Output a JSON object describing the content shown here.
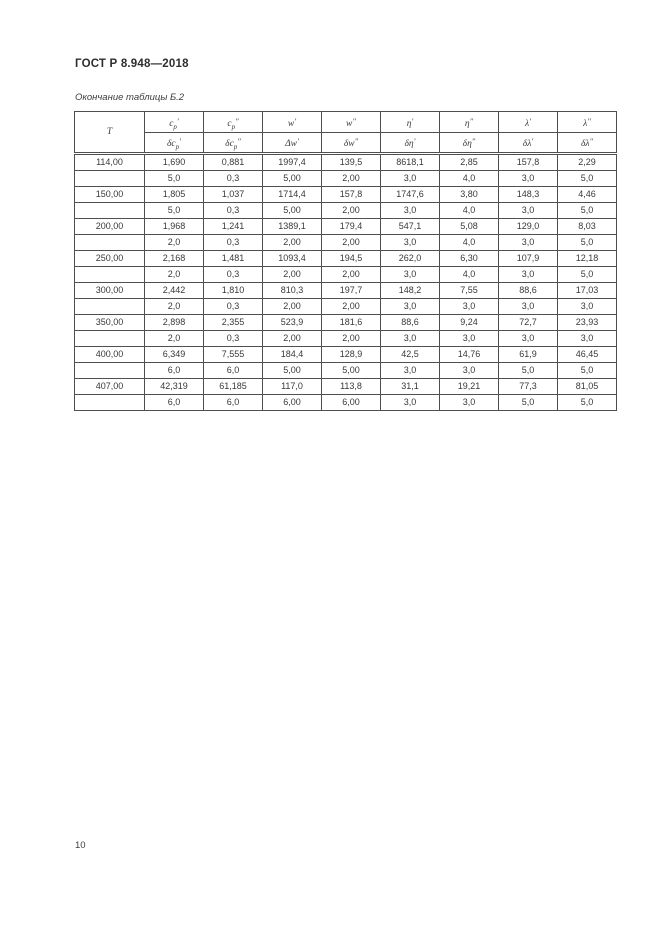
{
  "page": {
    "header_title": "ГОСТ Р 8.948—2018",
    "table_caption": "Окончание таблицы Б.2",
    "page_number": "10"
  },
  "table": {
    "col_t": {
      "base": "T"
    },
    "header_top": [
      {
        "base": "c",
        "sub": "p",
        "mark": "′"
      },
      {
        "base": "c",
        "sub": "p",
        "mark": "″"
      },
      {
        "base": "w",
        "sub": "",
        "mark": "′"
      },
      {
        "base": "w",
        "sub": "",
        "mark": "″"
      },
      {
        "base": "η",
        "sub": "",
        "mark": "′"
      },
      {
        "base": "η",
        "sub": "",
        "mark": "″"
      },
      {
        "base": "λ",
        "sub": "",
        "mark": "′"
      },
      {
        "base": "λ",
        "sub": "",
        "mark": "″"
      }
    ],
    "header_bottom": [
      {
        "base": "δc",
        "sub": "p",
        "mark": "′"
      },
      {
        "base": "δc",
        "sub": "p",
        "mark": "″"
      },
      {
        "base": "Δw",
        "sub": "",
        "mark": "′"
      },
      {
        "base": "δw",
        "sub": "",
        "mark": "″"
      },
      {
        "base": "δη",
        "sub": "",
        "mark": "′"
      },
      {
        "base": "δη",
        "sub": "",
        "mark": "″"
      },
      {
        "base": "δλ",
        "sub": "",
        "mark": "′"
      },
      {
        "base": "δλ",
        "sub": "",
        "mark": "″"
      }
    ],
    "rows": [
      {
        "t": "114,00",
        "values": [
          "1,690",
          "0,881",
          "1997,4",
          "139,5",
          "8618,1",
          "2,85",
          "157,8",
          "2,29"
        ],
        "deltas": [
          "5,0",
          "0,3",
          "5,00",
          "2,00",
          "3,0",
          "4,0",
          "3,0",
          "5,0"
        ]
      },
      {
        "t": "150,00",
        "values": [
          "1,805",
          "1,037",
          "1714,4",
          "157,8",
          "1747,6",
          "3,80",
          "148,3",
          "4,46"
        ],
        "deltas": [
          "5,0",
          "0,3",
          "5,00",
          "2,00",
          "3,0",
          "4,0",
          "3,0",
          "5,0"
        ]
      },
      {
        "t": "200,00",
        "values": [
          "1,968",
          "1,241",
          "1389,1",
          "179,4",
          "547,1",
          "5,08",
          "129,0",
          "8,03"
        ],
        "deltas": [
          "2,0",
          "0,3",
          "2,00",
          "2,00",
          "3,0",
          "4,0",
          "3,0",
          "5,0"
        ]
      },
      {
        "t": "250,00",
        "values": [
          "2,168",
          "1,481",
          "1093,4",
          "194,5",
          "262,0",
          "6,30",
          "107,9",
          "12,18"
        ],
        "deltas": [
          "2,0",
          "0,3",
          "2,00",
          "2,00",
          "3,0",
          "4,0",
          "3,0",
          "5,0"
        ]
      },
      {
        "t": "300,00",
        "values": [
          "2,442",
          "1,810",
          "810,3",
          "197,7",
          "148,2",
          "7,55",
          "88,6",
          "17,03"
        ],
        "deltas": [
          "2,0",
          "0,3",
          "2,00",
          "2,00",
          "3,0",
          "3,0",
          "3,0",
          "3,0"
        ]
      },
      {
        "t": "350,00",
        "values": [
          "2,898",
          "2,355",
          "523,9",
          "181,6",
          "88,6",
          "9,24",
          "72,7",
          "23,93"
        ],
        "deltas": [
          "2,0",
          "0,3",
          "2,00",
          "2,00",
          "3,0",
          "3,0",
          "3,0",
          "3,0"
        ]
      },
      {
        "t": "400,00",
        "values": [
          "6,349",
          "7,555",
          "184,4",
          "128,9",
          "42,5",
          "14,76",
          "61,9",
          "46,45"
        ],
        "deltas": [
          "6,0",
          "6,0",
          "5,00",
          "5,00",
          "3,0",
          "3,0",
          "5,0",
          "5,0"
        ]
      },
      {
        "t": "407,00",
        "values": [
          "42,319",
          "61,185",
          "117,0",
          "113,8",
          "31,1",
          "19,21",
          "77,3",
          "81,05"
        ],
        "deltas": [
          "6,0",
          "6,0",
          "6,00",
          "6,00",
          "3,0",
          "3,0",
          "5,0",
          "5,0"
        ]
      }
    ]
  }
}
